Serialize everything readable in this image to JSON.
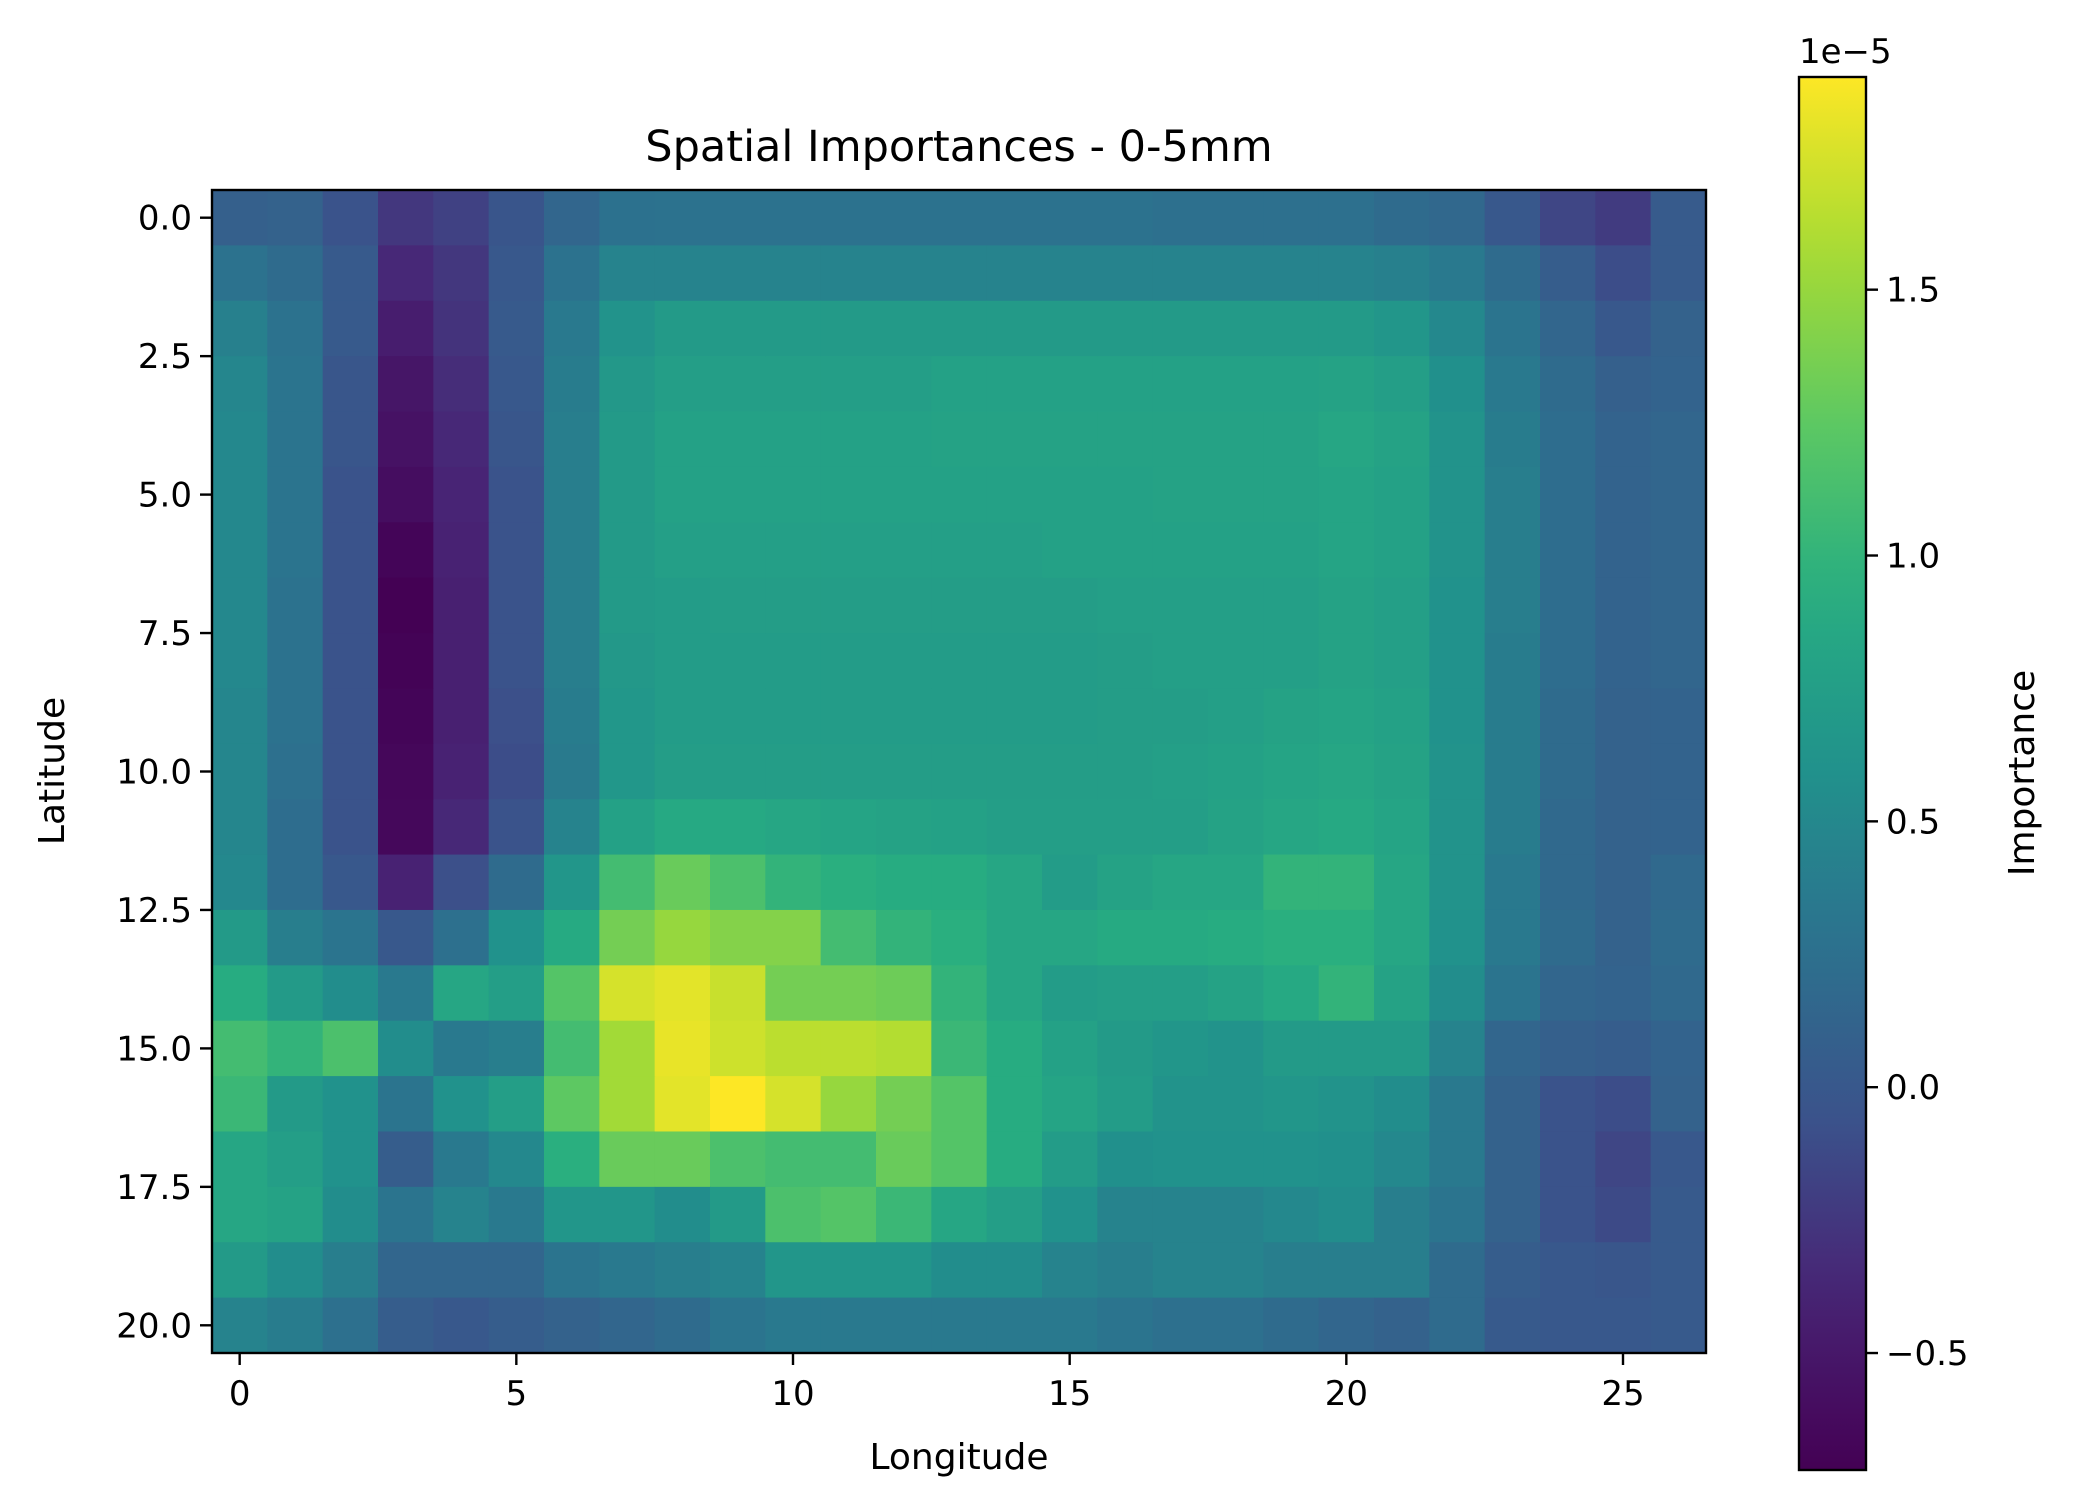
{
  "chart_data": {
    "type": "heatmap",
    "title": "Spatial Importances - 0-5mm",
    "xlabel": "Longitude",
    "ylabel": "Latitude",
    "xlim": [
      -0.5,
      26.5
    ],
    "ylim": [
      20.5,
      -0.5
    ],
    "xticks": [
      0,
      5,
      10,
      15,
      20,
      25
    ],
    "xtick_labels": [
      "0",
      "5",
      "10",
      "15",
      "20",
      "25"
    ],
    "yticks": [
      0.0,
      2.5,
      5.0,
      7.5,
      10.0,
      12.5,
      15.0,
      17.5,
      20.0
    ],
    "ytick_labels": [
      "0.0",
      "2.5",
      "5.0",
      "7.5",
      "10.0",
      "12.5",
      "15.0",
      "17.5",
      "20.0"
    ],
    "colorbar": {
      "label": "Importance",
      "colormap": "viridis",
      "range": [
        -0.72,
        1.9
      ],
      "offset_text": "1e−5",
      "ticks": [
        -0.5,
        0.0,
        0.5,
        1.0,
        1.5
      ],
      "tick_labels": [
        "−0.5",
        "0.0",
        "0.5",
        "1.0",
        "1.5"
      ]
    },
    "units_scale": "1e-5",
    "z": [
      [
        0.08,
        0.1,
        -0.05,
        -0.25,
        -0.18,
        -0.03,
        0.15,
        0.27,
        0.28,
        0.28,
        0.28,
        0.28,
        0.28,
        0.28,
        0.28,
        0.28,
        0.28,
        0.25,
        0.25,
        0.25,
        0.25,
        0.2,
        0.17,
        0.0,
        -0.15,
        -0.22,
        0.03
      ],
      [
        0.28,
        0.2,
        0.02,
        -0.35,
        -0.25,
        0.0,
        0.28,
        0.45,
        0.45,
        0.45,
        0.45,
        0.45,
        0.45,
        0.45,
        0.45,
        0.45,
        0.45,
        0.45,
        0.45,
        0.45,
        0.45,
        0.42,
        0.35,
        0.2,
        0.05,
        -0.1,
        0.03
      ],
      [
        0.42,
        0.28,
        0.02,
        -0.45,
        -0.28,
        0.02,
        0.35,
        0.62,
        0.7,
        0.7,
        0.7,
        0.7,
        0.7,
        0.7,
        0.7,
        0.7,
        0.7,
        0.7,
        0.7,
        0.7,
        0.7,
        0.65,
        0.5,
        0.3,
        0.15,
        0.0,
        0.1
      ],
      [
        0.48,
        0.3,
        -0.02,
        -0.52,
        -0.32,
        0.0,
        0.38,
        0.68,
        0.75,
        0.75,
        0.75,
        0.75,
        0.75,
        0.78,
        0.78,
        0.78,
        0.78,
        0.78,
        0.78,
        0.78,
        0.8,
        0.75,
        0.58,
        0.35,
        0.2,
        0.08,
        0.12
      ],
      [
        0.5,
        0.3,
        -0.02,
        -0.55,
        -0.35,
        -0.02,
        0.4,
        0.7,
        0.78,
        0.78,
        0.78,
        0.78,
        0.78,
        0.8,
        0.8,
        0.8,
        0.8,
        0.8,
        0.8,
        0.8,
        0.85,
        0.8,
        0.62,
        0.38,
        0.22,
        0.12,
        0.15
      ],
      [
        0.5,
        0.3,
        -0.05,
        -0.6,
        -0.38,
        -0.05,
        0.4,
        0.7,
        0.78,
        0.78,
        0.78,
        0.78,
        0.78,
        0.78,
        0.78,
        0.78,
        0.78,
        0.8,
        0.8,
        0.8,
        0.82,
        0.78,
        0.62,
        0.4,
        0.22,
        0.12,
        0.15
      ],
      [
        0.5,
        0.3,
        -0.05,
        -0.68,
        -0.4,
        -0.05,
        0.4,
        0.7,
        0.76,
        0.76,
        0.76,
        0.76,
        0.76,
        0.76,
        0.76,
        0.78,
        0.78,
        0.78,
        0.78,
        0.78,
        0.82,
        0.78,
        0.62,
        0.4,
        0.22,
        0.12,
        0.15
      ],
      [
        0.5,
        0.28,
        -0.05,
        -0.72,
        -0.42,
        -0.05,
        0.4,
        0.7,
        0.72,
        0.74,
        0.74,
        0.74,
        0.74,
        0.74,
        0.74,
        0.74,
        0.76,
        0.76,
        0.76,
        0.76,
        0.8,
        0.76,
        0.6,
        0.4,
        0.22,
        0.12,
        0.15
      ],
      [
        0.5,
        0.28,
        -0.05,
        -0.7,
        -0.42,
        -0.05,
        0.4,
        0.68,
        0.72,
        0.72,
        0.72,
        0.72,
        0.72,
        0.72,
        0.72,
        0.72,
        0.74,
        0.76,
        0.76,
        0.76,
        0.8,
        0.76,
        0.6,
        0.38,
        0.22,
        0.12,
        0.15
      ],
      [
        0.48,
        0.28,
        -0.05,
        -0.68,
        -0.42,
        -0.08,
        0.38,
        0.66,
        0.72,
        0.72,
        0.72,
        0.72,
        0.72,
        0.72,
        0.72,
        0.72,
        0.74,
        0.74,
        0.76,
        0.8,
        0.82,
        0.78,
        0.6,
        0.38,
        0.2,
        0.1,
        0.12
      ],
      [
        0.48,
        0.25,
        -0.05,
        -0.66,
        -0.4,
        -0.1,
        0.36,
        0.66,
        0.74,
        0.74,
        0.74,
        0.74,
        0.74,
        0.74,
        0.74,
        0.74,
        0.74,
        0.76,
        0.78,
        0.82,
        0.85,
        0.8,
        0.62,
        0.38,
        0.2,
        0.1,
        0.12
      ],
      [
        0.48,
        0.22,
        -0.05,
        -0.65,
        -0.35,
        -0.05,
        0.45,
        0.78,
        0.88,
        0.88,
        0.85,
        0.82,
        0.8,
        0.78,
        0.75,
        0.75,
        0.75,
        0.75,
        0.8,
        0.85,
        0.88,
        0.82,
        0.62,
        0.38,
        0.18,
        0.1,
        0.12
      ],
      [
        0.5,
        0.22,
        0.0,
        -0.4,
        -0.08,
        0.2,
        0.65,
        1.1,
        1.3,
        1.15,
        1.0,
        0.95,
        0.92,
        0.92,
        0.85,
        0.72,
        0.8,
        0.85,
        0.85,
        1.0,
        1.0,
        0.85,
        0.62,
        0.35,
        0.18,
        0.1,
        0.18
      ],
      [
        0.7,
        0.4,
        0.3,
        0.0,
        0.25,
        0.6,
        0.9,
        1.35,
        1.5,
        1.42,
        1.42,
        1.1,
        1.0,
        0.95,
        0.85,
        0.85,
        0.9,
        0.9,
        0.92,
        0.95,
        0.95,
        0.85,
        0.6,
        0.35,
        0.2,
        0.1,
        0.2
      ],
      [
        0.92,
        0.7,
        0.55,
        0.35,
        0.85,
        0.75,
        1.2,
        1.75,
        1.8,
        1.7,
        1.35,
        1.35,
        1.32,
        1.0,
        0.85,
        0.72,
        0.75,
        0.75,
        0.8,
        0.88,
        1.0,
        0.8,
        0.55,
        0.3,
        0.15,
        0.12,
        0.18
      ],
      [
        1.1,
        1.0,
        1.15,
        0.55,
        0.35,
        0.4,
        1.1,
        1.55,
        1.82,
        1.72,
        1.65,
        1.65,
        1.62,
        1.05,
        0.92,
        0.78,
        0.7,
        0.65,
        0.62,
        0.7,
        0.7,
        0.7,
        0.45,
        0.15,
        0.08,
        0.05,
        0.12
      ],
      [
        1.05,
        0.7,
        0.6,
        0.3,
        0.6,
        0.75,
        1.25,
        1.55,
        1.8,
        1.9,
        1.75,
        1.5,
        1.35,
        1.2,
        0.92,
        0.82,
        0.72,
        0.62,
        0.62,
        0.65,
        0.62,
        0.55,
        0.35,
        0.1,
        -0.05,
        -0.1,
        0.1
      ],
      [
        0.85,
        0.75,
        0.6,
        0.05,
        0.35,
        0.5,
        0.95,
        1.3,
        1.3,
        1.15,
        1.1,
        1.1,
        1.3,
        1.2,
        0.92,
        0.72,
        0.58,
        0.6,
        0.6,
        0.6,
        0.58,
        0.5,
        0.35,
        0.1,
        -0.05,
        -0.15,
        0.0
      ],
      [
        0.85,
        0.8,
        0.55,
        0.3,
        0.45,
        0.35,
        0.65,
        0.65,
        0.55,
        0.7,
        1.15,
        1.2,
        1.05,
        0.85,
        0.75,
        0.6,
        0.45,
        0.45,
        0.45,
        0.5,
        0.55,
        0.4,
        0.3,
        0.1,
        -0.05,
        -0.12,
        0.02
      ],
      [
        0.7,
        0.55,
        0.4,
        0.15,
        0.15,
        0.15,
        0.3,
        0.35,
        0.4,
        0.45,
        0.65,
        0.65,
        0.65,
        0.55,
        0.55,
        0.45,
        0.4,
        0.45,
        0.45,
        0.4,
        0.4,
        0.4,
        0.2,
        0.05,
        0.0,
        -0.02,
        0.02
      ],
      [
        0.45,
        0.38,
        0.25,
        0.05,
        0.0,
        0.05,
        0.1,
        0.15,
        0.2,
        0.3,
        0.35,
        0.35,
        0.35,
        0.35,
        0.35,
        0.35,
        0.3,
        0.25,
        0.25,
        0.2,
        0.15,
        0.1,
        0.2,
        0.02,
        0.0,
        0.0,
        0.02
      ]
    ]
  }
}
